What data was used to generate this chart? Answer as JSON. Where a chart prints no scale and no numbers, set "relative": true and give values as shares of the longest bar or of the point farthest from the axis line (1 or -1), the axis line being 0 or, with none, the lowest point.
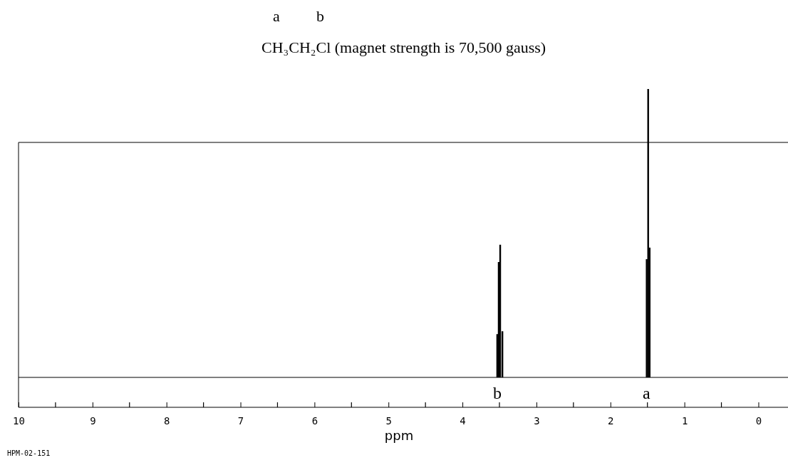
{
  "chart_data": {
    "type": "bar",
    "title": "CH₃CH₂Cl (magnet strength is 70,500 gauss)",
    "xlabel": "ppm",
    "relative": true,
    "x": [
      3.53,
      3.51,
      3.49,
      3.46,
      1.51,
      1.49,
      1.47
    ],
    "values": [
      0.15,
      0.4,
      0.46,
      0.16,
      0.41,
      1,
      0.45
    ],
    "color": "#000000",
    "xlim": [
      10,
      -0.4
    ],
    "xticks": [
      10,
      9,
      8,
      7,
      6,
      5,
      4,
      3,
      2,
      1,
      0
    ],
    "annotations": [
      "a",
      "b",
      "b",
      "a",
      "HPM-02-151"
    ]
  }
}
